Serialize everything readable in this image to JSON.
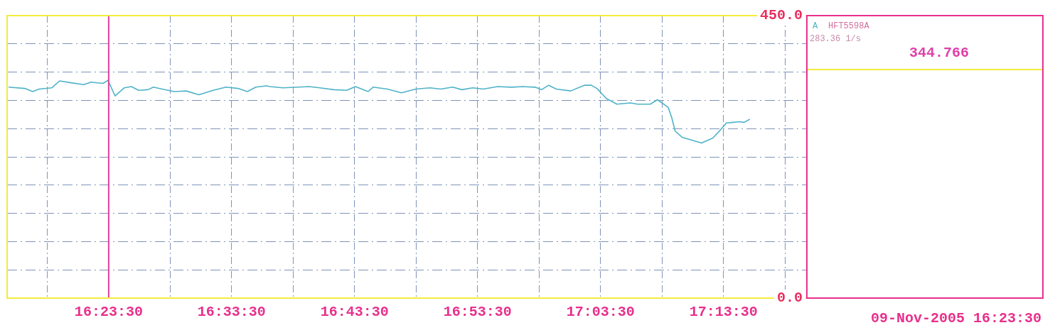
{
  "chart_data": {
    "type": "line",
    "x": [
      16.2559,
      16.278,
      16.2886,
      16.2973,
      16.3146,
      16.3252,
      16.3406,
      16.358,
      16.3676,
      16.384,
      16.3907,
      16.4004,
      16.4129,
      16.4225,
      16.4322,
      16.4447,
      16.4524,
      16.464,
      16.4803,
      16.4967,
      16.514,
      16.5333,
      16.5507,
      16.567,
      16.5796,
      16.5911,
      16.6056,
      16.6104,
      16.6277,
      16.6634,
      16.6778,
      16.6971,
      16.7144,
      16.726,
      16.7433,
      16.7501,
      16.7693,
      16.7886,
      16.8079,
      16.8272,
      16.8416,
      16.858,
      16.8705,
      16.885,
      16.8994,
      16.9187,
      16.9379,
      16.9524,
      16.9697,
      16.9784,
      16.988,
      16.9986,
      17.0179,
      17.0362,
      17.0458,
      17.0535,
      17.0661,
      17.0805,
      17.0988,
      17.1085,
      17.1258,
      17.1354,
      17.1499,
      17.1547,
      17.1595,
      17.1692,
      17.1952,
      17.2106,
      17.2202,
      17.2289,
      17.2385,
      17.2462,
      17.253,
      17.2607
    ],
    "series": [
      {
        "name": "A",
        "color": "#4fb3c8",
        "values": [
          336,
          334,
          329,
          333,
          335,
          346,
          343,
          340,
          344,
          342,
          347,
          322,
          335,
          337,
          331,
          332,
          336,
          333,
          329,
          330,
          324,
          331,
          336,
          334,
          329,
          336,
          338,
          337,
          335,
          337,
          335,
          332,
          331,
          337,
          329,
          336,
          333,
          327,
          333,
          335,
          333,
          336,
          332,
          335,
          333,
          337,
          336,
          337,
          336,
          332,
          339,
          333,
          330,
          339,
          339,
          334,
          318,
          309,
          311,
          309,
          309,
          316,
          304,
          288,
          266,
          256,
          247,
          255,
          267,
          279,
          280,
          281,
          280,
          285
        ]
      }
    ],
    "xlim": [
      16.254,
      17.338
    ],
    "xticks": [
      {
        "value": 16.308333,
        "label": null
      },
      {
        "value": 16.391667,
        "label": "16:23:30"
      },
      {
        "value": 16.475,
        "label": null
      },
      {
        "value": 16.558333,
        "label": "16:33:30"
      },
      {
        "value": 16.641667,
        "label": null
      },
      {
        "value": 16.725,
        "label": "16:43:30"
      },
      {
        "value": 16.808333,
        "label": null
      },
      {
        "value": 16.891667,
        "label": "16:53:30"
      },
      {
        "value": 16.975,
        "label": null
      },
      {
        "value": 17.058333,
        "label": "17:03:30"
      },
      {
        "value": 17.141667,
        "label": null
      },
      {
        "value": 17.225,
        "label": "17:13:30"
      },
      {
        "value": 17.308333,
        "label": null
      }
    ],
    "ylim": [
      0,
      450
    ],
    "yticks": [
      {
        "value": 0,
        "label": "0.0"
      },
      {
        "value": 45,
        "label": null
      },
      {
        "value": 90,
        "label": null
      },
      {
        "value": 135,
        "label": null
      },
      {
        "value": 180,
        "label": null
      },
      {
        "value": 225,
        "label": null
      },
      {
        "value": 270,
        "label": null
      },
      {
        "value": 315,
        "label": null
      },
      {
        "value": 360,
        "label": null
      },
      {
        "value": 405,
        "label": null
      },
      {
        "value": 450,
        "label": "450.0"
      }
    ],
    "grid": true,
    "legend": "right",
    "marker": "none",
    "line_style": "solid",
    "ref_lines": [
      {
        "axis": "x",
        "value": 16.391667,
        "label": null,
        "color": "#e0409a"
      }
    ],
    "annotations": [
      "HFT5598A",
      "283.36 1/s",
      "344.766",
      "09-Nov-2005 16:23:30"
    ]
  }
}
